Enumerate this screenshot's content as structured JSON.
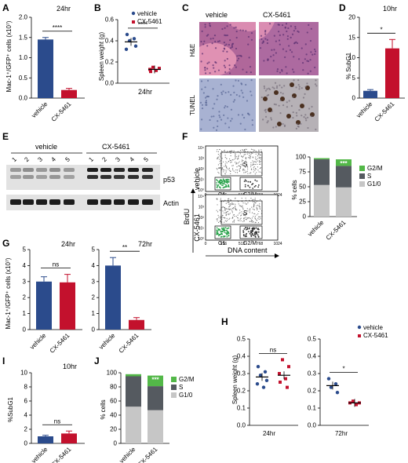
{
  "colors": {
    "vehicle": "#2b4b8c",
    "cx": "#c3112d",
    "g2m": "#53b848",
    "s": "#555a60",
    "g1": "#c6c6c6",
    "he": "#c87aa5",
    "tunel": "#9ca9c8"
  },
  "panelA": {
    "letter": "A",
    "time": "24hr",
    "ylabel": "Mac-1⁺/GFP⁺ cells (x10⁷)",
    "ticks": [
      "0.0",
      "0.5",
      "1.0",
      "1.5",
      "2.0"
    ],
    "ylim": [
      0,
      2.0
    ],
    "categories": [
      "vehicle",
      "CX-5461"
    ],
    "values": [
      1.45,
      0.2
    ],
    "errors": [
      0.05,
      0.04
    ],
    "sig": "****"
  },
  "panelB": {
    "letter": "B",
    "time": "24hr",
    "ylabel": "Spleen weight (g)",
    "ticks": [
      "0.0",
      "0.2",
      "0.4",
      "0.6"
    ],
    "ylim": [
      0,
      0.6
    ],
    "legend": [
      "vehicle",
      "CX-5461"
    ],
    "vehicle_points": [
      0.46,
      0.42,
      0.4,
      0.35,
      0.32
    ],
    "cx_points": [
      0.15,
      0.14,
      0.13,
      0.12,
      0.11
    ],
    "vehicle_mean": 0.39,
    "cx_mean": 0.13,
    "sig": "****"
  },
  "panelC": {
    "letter": "C",
    "col_labels": [
      "vehicle",
      "CX-5461"
    ],
    "row_labels": [
      "H&E",
      "TUNEL"
    ]
  },
  "panelD": {
    "letter": "D",
    "time": "10hr",
    "ylabel": "% SubG1",
    "ticks": [
      "0",
      "5",
      "10",
      "15",
      "20"
    ],
    "ylim": [
      0,
      20
    ],
    "categories": [
      "vehicle",
      "CX-5461"
    ],
    "values": [
      1.8,
      12.3
    ],
    "errors": [
      0.3,
      2.2
    ],
    "sig": "*"
  },
  "panelE": {
    "letter": "E",
    "groups": [
      "vehicle",
      "CX-5461"
    ],
    "lanes": [
      "1",
      "2",
      "3",
      "4",
      "5",
      "1",
      "2",
      "3",
      "4",
      "5"
    ],
    "bands": [
      "p53",
      "Actin"
    ]
  },
  "panelF": {
    "letter": "F",
    "row_labels": [
      "vehicle",
      "CX-5461"
    ],
    "y_axis": "BrdU",
    "x_axis": "DNA content",
    "y_ticks": [
      "10⁴",
      "10³",
      "10²",
      "10¹",
      "10⁰"
    ],
    "x_ticks": [
      "0",
      "256",
      "512",
      "768",
      "1024"
    ],
    "gates": [
      "S",
      "G1",
      "G2/M"
    ],
    "bar_ylabel": "% cells",
    "bar_ticks": [
      "0",
      "25",
      "50",
      "75",
      "100"
    ],
    "categories": [
      "vehicle",
      "CX-5461"
    ],
    "legend": [
      "G2/M",
      "S",
      "G1/0"
    ],
    "series": [
      {
        "name": "G1/0",
        "values": [
          53,
          49
        ]
      },
      {
        "name": "S",
        "values": [
          43,
          36
        ]
      },
      {
        "name": "G2/M",
        "values": [
          2,
          11
        ]
      }
    ],
    "sig": "***"
  },
  "panelG": {
    "letter": "G",
    "ylabel": "Mac-1⁺/GFP⁺ cells (x10⁷)",
    "left": {
      "time": "24hr",
      "ticks": [
        "0",
        "1",
        "2",
        "3",
        "4",
        "5"
      ],
      "ylim": [
        0,
        5
      ],
      "values": [
        3.0,
        2.95
      ],
      "errors": [
        0.3,
        0.5
      ],
      "sig": "ns"
    },
    "right": {
      "time": "72hr",
      "ticks": [
        "0",
        "1",
        "2",
        "3",
        "4",
        "5"
      ],
      "ylim": [
        0,
        5
      ],
      "values": [
        4.0,
        0.6
      ],
      "errors": [
        0.5,
        0.15
      ],
      "sig": "**"
    },
    "categories": [
      "vehicle",
      "CX-5461"
    ]
  },
  "panelH": {
    "letter": "H",
    "ylabel": "Spleen weight (g)",
    "ticks": [
      "0.0",
      "0.1",
      "0.2",
      "0.3",
      "0.4",
      "0.5"
    ],
    "ylim": [
      0,
      0.5
    ],
    "legend": [
      "vehicle",
      "CX-5461"
    ],
    "left": {
      "time": "24hr",
      "vehicle_points": [
        0.34,
        0.31,
        0.29,
        0.26,
        0.24,
        0.22
      ],
      "cx_points": [
        0.38,
        0.34,
        0.3,
        0.27,
        0.25,
        0.22
      ],
      "vehicle_mean": 0.28,
      "cx_mean": 0.29,
      "sig": "ns"
    },
    "right": {
      "time": "72hr",
      "vehicle_points": [
        0.27,
        0.24,
        0.22,
        0.19
      ],
      "cx_points": [
        0.14,
        0.13,
        0.13,
        0.12
      ],
      "vehicle_mean": 0.23,
      "cx_mean": 0.13,
      "sig": "*"
    }
  },
  "panelI": {
    "letter": "I",
    "time": "10hr",
    "ylabel": "%SubG1",
    "ticks": [
      "0",
      "2",
      "4",
      "6",
      "8",
      "10"
    ],
    "ylim": [
      0,
      10
    ],
    "categories": [
      "vehicle",
      "CX-5461"
    ],
    "values": [
      1.0,
      1.4
    ],
    "errors": [
      0.15,
      0.35
    ],
    "sig": "ns"
  },
  "panelJ": {
    "letter": "J",
    "ylabel": "% cells",
    "ticks": [
      "0",
      "20",
      "40",
      "60",
      "80",
      "100"
    ],
    "categories": [
      "vehicle",
      "CX-5461"
    ],
    "legend": [
      "G2/M",
      "S",
      "G1/0"
    ],
    "series": [
      {
        "name": "G1/0",
        "values": [
          52,
          47
        ]
      },
      {
        "name": "S",
        "values": [
          43,
          34
        ]
      },
      {
        "name": "G2/M",
        "values": [
          3,
          15
        ]
      }
    ],
    "sig": "***"
  }
}
